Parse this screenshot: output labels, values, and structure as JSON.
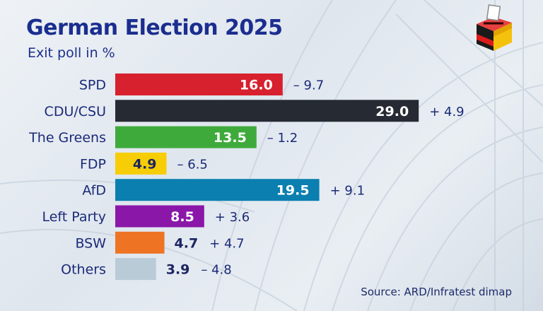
{
  "header": {
    "title": "German Election 2025",
    "subtitle": "Exit poll in %"
  },
  "footer": {
    "source": "Source: ARD/Infratest dimap"
  },
  "logo": {
    "icon": "ballot-box-german-flag-icon"
  },
  "chart_data": {
    "type": "bar",
    "orientation": "horizontal",
    "title": "German Election 2025",
    "subtitle": "Exit poll in %",
    "categories": [
      "SPD",
      "CDU/CSU",
      "The Greens",
      "FDP",
      "AfD",
      "Left Party",
      "BSW",
      "Others"
    ],
    "values": [
      16.0,
      29.0,
      13.5,
      4.9,
      19.5,
      8.5,
      4.7,
      3.9
    ],
    "value_labels": [
      "16.0",
      "29.0",
      "13.5",
      "4.9",
      "19.5",
      "8.5",
      "4.7",
      "3.9"
    ],
    "change_labels": [
      "– 9.7",
      "+ 4.9",
      "– 1.2",
      "– 6.5",
      "+ 9.1",
      "+ 3.6",
      "+ 4.7",
      "– 4.8"
    ],
    "colors": [
      "#d7212e",
      "#262a33",
      "#3faa3c",
      "#f7cd05",
      "#0a7fb0",
      "#8a17a8",
      "#ee7424",
      "#b9cbd6"
    ],
    "value_label_colors": [
      "#ffffff",
      "#ffffff",
      "#ffffff",
      "#1b2560",
      "#ffffff",
      "#ffffff",
      "#1b2560",
      "#1b2560"
    ],
    "xlim": [
      0,
      30
    ],
    "grid": false,
    "legend": "none"
  }
}
